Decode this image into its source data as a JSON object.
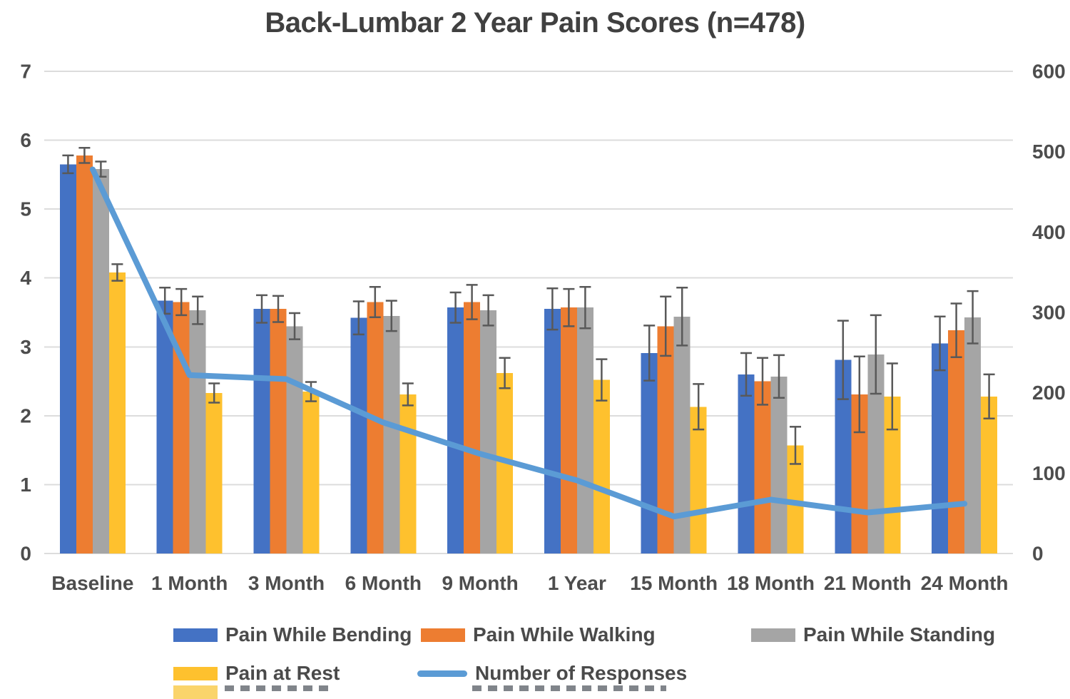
{
  "chart_data": {
    "type": "bar",
    "title": "Back-Lumbar 2 Year Pain Scores (n=478)",
    "categories": [
      "Baseline",
      "1 Month",
      "3 Month",
      "6 Month",
      "9 Month",
      "1 Year",
      "15 Month",
      "18 Month",
      "21 Month",
      "24 Month"
    ],
    "series": [
      {
        "name": "Pain While Bending",
        "color": "#4472C4",
        "values": [
          5.65,
          3.67,
          3.55,
          3.42,
          3.57,
          3.55,
          2.91,
          2.6,
          2.81,
          3.05
        ],
        "errors": [
          0.13,
          0.19,
          0.2,
          0.24,
          0.22,
          0.3,
          0.4,
          0.31,
          0.57,
          0.39
        ]
      },
      {
        "name": "Pain While Walking",
        "color": "#ED7D31",
        "values": [
          5.78,
          3.65,
          3.55,
          3.65,
          3.65,
          3.57,
          3.3,
          2.5,
          2.31,
          3.24
        ],
        "errors": [
          0.11,
          0.19,
          0.19,
          0.22,
          0.25,
          0.27,
          0.43,
          0.34,
          0.55,
          0.39
        ]
      },
      {
        "name": "Pain While Standing",
        "color": "#A5A5A5",
        "values": [
          5.58,
          3.53,
          3.3,
          3.45,
          3.53,
          3.57,
          3.44,
          2.57,
          2.89,
          3.43
        ],
        "errors": [
          0.11,
          0.2,
          0.19,
          0.22,
          0.22,
          0.3,
          0.42,
          0.31,
          0.57,
          0.38
        ]
      },
      {
        "name": "Pain at Rest",
        "color": "#FEC12E",
        "values": [
          4.08,
          2.33,
          2.35,
          2.31,
          2.62,
          2.52,
          2.13,
          1.57,
          2.28,
          2.28
        ],
        "errors": [
          0.12,
          0.14,
          0.14,
          0.16,
          0.22,
          0.3,
          0.33,
          0.27,
          0.48,
          0.32
        ]
      }
    ],
    "line_series": {
      "name": "Number of Responses",
      "color": "#5B9BD5",
      "axis": "right",
      "values": [
        478,
        222,
        217,
        163,
        124,
        91,
        46,
        67,
        51,
        62
      ]
    },
    "left_axis": {
      "ticks": [
        0,
        1,
        2,
        3,
        4,
        5,
        6,
        7
      ],
      "min": 0,
      "max": 7
    },
    "right_axis": {
      "ticks": [
        0,
        100,
        200,
        300,
        400,
        500,
        600
      ],
      "min": 0,
      "max": 600
    },
    "grid": "horizontal",
    "gridline_color": "#DCDCDC",
    "error_bar_color": "#595959",
    "legend_position": "bottom",
    "legend_clipped_third_row": true,
    "clipped_row_swatch_color": "#FAD46B"
  }
}
